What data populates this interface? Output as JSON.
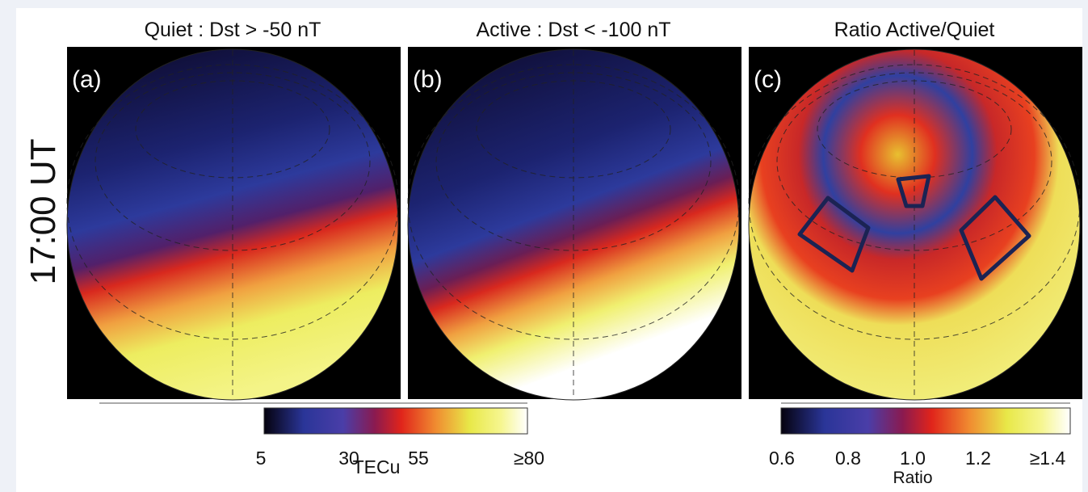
{
  "row_label": "17:00 UT",
  "panels": [
    {
      "title": "Quiet : Dst > -50 nT",
      "tag": "(a)"
    },
    {
      "title": "Active : Dst < -100 nT",
      "tag": "(b)"
    },
    {
      "title": "Ratio Active/Quiet",
      "tag": "(c)"
    }
  ],
  "colorbars": [
    {
      "ticks": [
        "5",
        "30",
        "55",
        "≥80"
      ],
      "label": "TECu"
    },
    {
      "ticks": [
        "0.6",
        "0.8",
        "1.0",
        "1.2",
        "≥1.4"
      ],
      "label": "Ratio"
    }
  ]
}
